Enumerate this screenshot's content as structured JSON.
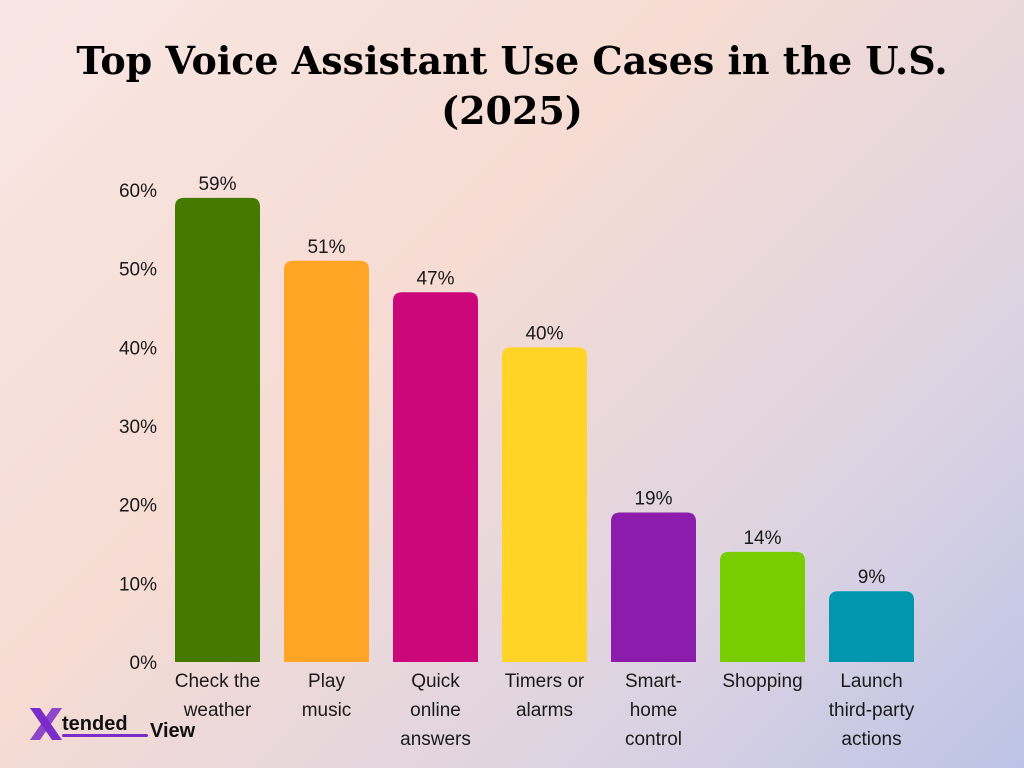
{
  "chart_data": {
    "type": "bar",
    "title_lines": [
      "Top Voice Assistant Use Cases in the U.S.",
      "(2025)"
    ],
    "categories": [
      [
        "Check the",
        "weather"
      ],
      [
        "Play",
        "music"
      ],
      [
        "Quick",
        "online",
        "answers"
      ],
      [
        "Timers or",
        "alarms"
      ],
      [
        "Smart-",
        "home",
        "control"
      ],
      [
        "Shopping"
      ],
      [
        "Launch",
        "third-party",
        "actions"
      ]
    ],
    "values": [
      59,
      51,
      47,
      40,
      19,
      14,
      9
    ],
    "data_labels": [
      "59%",
      "51%",
      "47%",
      "40%",
      "19%",
      "14%",
      "9%"
    ],
    "colors": [
      "#457a00",
      "#ffa425",
      "#cc0779",
      "#ffd426",
      "#8c1dac",
      "#78cd00",
      "#0097ae"
    ],
    "y_ticks": [
      0,
      10,
      20,
      30,
      40,
      50,
      60
    ],
    "y_tick_labels": [
      "0%",
      "10%",
      "20%",
      "30%",
      "40%",
      "50%",
      "60%"
    ],
    "ylim": [
      0,
      60
    ],
    "grid": false,
    "legend": "none"
  },
  "logo": {
    "mark": "X",
    "text": "tended",
    "text2": "View",
    "colors": {
      "mark": "#7b2cc9",
      "text": "#111111",
      "underline": "#7b2cc9"
    }
  }
}
